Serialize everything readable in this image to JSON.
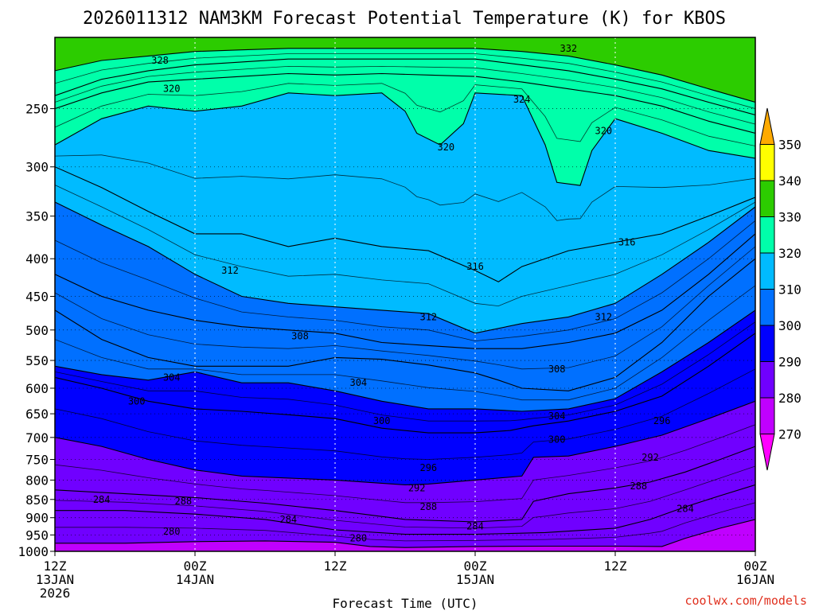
{
  "chart_data": {
    "type": "contour",
    "title": "2026011312 NAM3KM Forecast Potential Temperature (K) for KBOS",
    "xlabel": "Forecast Time (UTC)",
    "ylabel": "",
    "y_scale": "log-pressure (inverted)",
    "y_unit": "hPa",
    "ylim": [
      1000,
      200
    ],
    "xlim_hours": [
      0,
      60
    ],
    "y_ticks": [
      250,
      300,
      350,
      400,
      450,
      500,
      550,
      600,
      650,
      700,
      750,
      800,
      850,
      900,
      950,
      1000
    ],
    "x_ticks": [
      {
        "hour": 0,
        "line1": "12Z",
        "line2": "13JAN",
        "line3": "2026"
      },
      {
        "hour": 12,
        "line1": "00Z",
        "line2": "14JAN",
        "line3": ""
      },
      {
        "hour": 24,
        "line1": "12Z",
        "line2": "",
        "line3": ""
      },
      {
        "hour": 36,
        "line1": "00Z",
        "line2": "15JAN",
        "line3": ""
      },
      {
        "hour": 48,
        "line1": "12Z",
        "line2": "",
        "line3": ""
      },
      {
        "hour": 60,
        "line1": "00Z",
        "line2": "16JAN",
        "line3": ""
      }
    ],
    "grid": true,
    "colorbar": {
      "placement": "right",
      "levels": [
        270,
        280,
        290,
        300,
        310,
        320,
        330,
        340,
        350
      ],
      "colors": [
        "#ff00ff",
        "#c000ff",
        "#7000ff",
        "#0000ff",
        "#0070ff",
        "#00bbff",
        "#00ffaa",
        "#2ccc00",
        "#ffff00",
        "#ffaa00"
      ]
    },
    "contour_interval": 2,
    "series": [
      {
        "level": 280,
        "hours": [
          0,
          6,
          12,
          18,
          24,
          27,
          30,
          36,
          42,
          48,
          52,
          54,
          57,
          60
        ],
        "pressure": [
          975,
          975,
          970,
          968,
          972,
          985,
          988,
          985,
          984,
          984,
          985,
          960,
          930,
          905
        ]
      },
      {
        "level": 284,
        "hours": [
          0,
          6,
          12,
          18,
          24,
          30,
          36,
          42,
          48,
          51,
          54,
          57,
          60
        ],
        "pressure": [
          880,
          880,
          890,
          905,
          935,
          948,
          948,
          943,
          930,
          905,
          870,
          840,
          812
        ]
      },
      {
        "level": 288,
        "hours": [
          0,
          6,
          12,
          18,
          24,
          30,
          36,
          40,
          41,
          44,
          48,
          51,
          54,
          57,
          60
        ],
        "pressure": [
          825,
          835,
          845,
          860,
          880,
          905,
          912,
          905,
          855,
          835,
          820,
          805,
          780,
          750,
          720
        ]
      },
      {
        "level": 292,
        "hours": [
          0,
          4,
          8,
          12,
          16,
          20,
          24,
          28,
          30,
          32,
          36,
          40,
          41,
          44,
          48,
          52,
          56,
          60
        ],
        "pressure": [
          700,
          720,
          750,
          775,
          790,
          795,
          800,
          808,
          812,
          810,
          800,
          790,
          745,
          742,
          720,
          695,
          660,
          625
        ]
      },
      {
        "level": 296,
        "hours": [
          0,
          4,
          8,
          12,
          16,
          20,
          24,
          28,
          32,
          36,
          39,
          41,
          44,
          48,
          52,
          56,
          60
        ],
        "pressure": [
          580,
          600,
          625,
          640,
          645,
          652,
          660,
          680,
          690,
          690,
          685,
          675,
          665,
          645,
          615,
          560,
          505
        ]
      },
      {
        "level": 300,
        "hours": [
          0,
          4,
          8,
          12,
          16,
          20,
          24,
          28,
          32,
          36,
          40,
          44,
          48,
          52,
          56,
          60
        ],
        "pressure": [
          560,
          575,
          585,
          570,
          590,
          590,
          605,
          625,
          640,
          640,
          645,
          640,
          620,
          570,
          520,
          470
        ]
      },
      {
        "level": 304,
        "hours": [
          0,
          4,
          8,
          12,
          16,
          20,
          24,
          28,
          32,
          36,
          38,
          40,
          44,
          48,
          52,
          56,
          60
        ],
        "pressure": [
          470,
          515,
          545,
          560,
          560,
          560,
          545,
          548,
          558,
          572,
          585,
          600,
          605,
          580,
          520,
          450,
          400
        ]
      },
      {
        "level": 308,
        "hours": [
          0,
          4,
          8,
          12,
          16,
          20,
          24,
          28,
          32,
          36,
          40,
          44,
          48,
          52,
          56,
          60
        ],
        "pressure": [
          420,
          450,
          470,
          485,
          495,
          500,
          505,
          520,
          525,
          530,
          530,
          520,
          505,
          470,
          420,
          370
        ]
      },
      {
        "level": 312,
        "hours": [
          0,
          4,
          8,
          12,
          16,
          20,
          24,
          28,
          32,
          36,
          40,
          44,
          48,
          52,
          56,
          60
        ],
        "pressure": [
          335,
          360,
          385,
          420,
          450,
          460,
          465,
          470,
          475,
          505,
          490,
          480,
          460,
          420,
          380,
          340
        ]
      },
      {
        "level": 316,
        "hours": [
          0,
          4,
          8,
          12,
          16,
          20,
          24,
          28,
          32,
          36,
          38,
          40,
          44,
          48,
          52,
          56,
          60
        ],
        "pressure": [
          300,
          320,
          345,
          370,
          370,
          385,
          375,
          385,
          390,
          415,
          430,
          410,
          390,
          380,
          370,
          350,
          330
        ]
      },
      {
        "level": 320,
        "hours": [
          0,
          4,
          8,
          12,
          16,
          20,
          24,
          28,
          30,
          31,
          33,
          35,
          36,
          40,
          42,
          43,
          45,
          46,
          48,
          52,
          56,
          60
        ],
        "pressure": [
          280,
          258,
          248,
          252,
          248,
          238,
          240,
          238,
          252,
          270,
          280,
          262,
          238,
          240,
          280,
          315,
          318,
          285,
          258,
          270,
          285,
          292
        ]
      },
      {
        "level": 324,
        "hours": [
          0,
          4,
          8,
          12,
          16,
          20,
          24,
          28,
          32,
          36,
          40,
          44,
          48,
          52,
          56,
          60
        ],
        "pressure": [
          250,
          238,
          230,
          228,
          226,
          224,
          225,
          224,
          225,
          226,
          230,
          235,
          240,
          248,
          260,
          270
        ]
      },
      {
        "level": 328,
        "hours": [
          0,
          4,
          8,
          12,
          16,
          20,
          24,
          28,
          32,
          36,
          40,
          44,
          48,
          52,
          56,
          60
        ],
        "pressure": [
          240,
          228,
          222,
          218,
          216,
          214,
          214,
          214,
          214,
          214,
          218,
          222,
          228,
          235,
          245,
          255
        ]
      },
      {
        "level": 332,
        "hours": [
          0,
          4,
          8,
          12,
          16,
          20,
          24,
          28,
          32,
          36,
          40,
          44,
          48,
          52,
          56,
          60
        ],
        "pressure": [
          222,
          215,
          212,
          209,
          208,
          207,
          207,
          207,
          207,
          207,
          209,
          212,
          218,
          225,
          235,
          245
        ]
      }
    ],
    "labels": [
      {
        "text": "328",
        "hour": 9,
        "pressure": 215
      },
      {
        "text": "320",
        "hour": 10,
        "pressure": 235
      },
      {
        "text": "332",
        "hour": 44,
        "pressure": 207
      },
      {
        "text": "324",
        "hour": 40,
        "pressure": 243
      },
      {
        "text": "320",
        "hour": 33.5,
        "pressure": 282
      },
      {
        "text": "320",
        "hour": 47,
        "pressure": 268
      },
      {
        "text": "316",
        "hour": 49,
        "pressure": 380
      },
      {
        "text": "312",
        "hour": 15,
        "pressure": 415
      },
      {
        "text": "316",
        "hour": 36,
        "pressure": 410
      },
      {
        "text": "312",
        "hour": 32,
        "pressure": 480
      },
      {
        "text": "312",
        "hour": 47,
        "pressure": 480
      },
      {
        "text": "308",
        "hour": 21,
        "pressure": 510
      },
      {
        "text": "308",
        "hour": 43,
        "pressure": 565
      },
      {
        "text": "304",
        "hour": 10,
        "pressure": 580
      },
      {
        "text": "304",
        "hour": 26,
        "pressure": 590
      },
      {
        "text": "304",
        "hour": 43,
        "pressure": 655
      },
      {
        "text": "300",
        "hour": 7,
        "pressure": 625
      },
      {
        "text": "300",
        "hour": 28,
        "pressure": 665
      },
      {
        "text": "300",
        "hour": 43,
        "pressure": 705
      },
      {
        "text": "296",
        "hour": 32,
        "pressure": 770
      },
      {
        "text": "296",
        "hour": 52,
        "pressure": 665
      },
      {
        "text": "292",
        "hour": 31,
        "pressure": 820
      },
      {
        "text": "292",
        "hour": 51,
        "pressure": 745
      },
      {
        "text": "288",
        "hour": 11,
        "pressure": 855
      },
      {
        "text": "288",
        "hour": 32,
        "pressure": 870
      },
      {
        "text": "288",
        "hour": 50,
        "pressure": 815
      },
      {
        "text": "284",
        "hour": 4,
        "pressure": 850
      },
      {
        "text": "284",
        "hour": 20,
        "pressure": 905
      },
      {
        "text": "284",
        "hour": 36,
        "pressure": 925
      },
      {
        "text": "284",
        "hour": 54,
        "pressure": 875
      },
      {
        "text": "280",
        "hour": 10,
        "pressure": 940
      },
      {
        "text": "280",
        "hour": 26,
        "pressure": 960
      }
    ],
    "ground": {
      "color": "#a0522d",
      "label_pressure": 1000
    }
  },
  "watermark": "coolwx.com/models"
}
